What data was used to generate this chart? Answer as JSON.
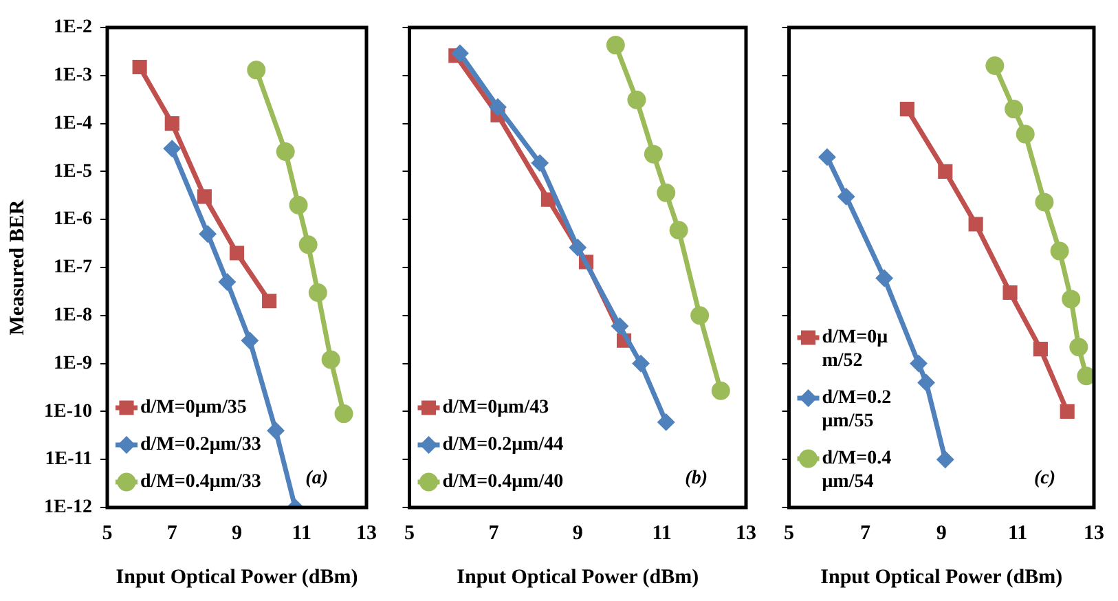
{
  "chart_data": [
    {
      "type": "line",
      "xlabel": "Input Optical Power (dBm)",
      "ylabel": "Measured BER",
      "log": "y",
      "grid": false,
      "legend": "bottom left",
      "line_style": "solid",
      "xlim": [
        5,
        13
      ],
      "xticks": [
        5,
        7,
        9,
        11,
        13
      ],
      "ylim": [
        1e-12,
        0.01
      ],
      "yticks": [
        {
          "value": 0.01,
          "label": "1E-2"
        },
        {
          "value": 0.001,
          "label": "1E-3"
        },
        {
          "value": 0.0001,
          "label": "1E-4"
        },
        {
          "value": 1e-05,
          "label": "1E-5"
        },
        {
          "value": 1e-06,
          "label": "1E-6"
        },
        {
          "value": 1e-07,
          "label": "1E-7"
        },
        {
          "value": 1e-08,
          "label": "1E-8"
        },
        {
          "value": 1e-09,
          "label": "1E-9"
        },
        {
          "value": 1e-10,
          "label": "1E-10"
        },
        {
          "value": 1e-11,
          "label": "1E-11"
        },
        {
          "value": 1e-12,
          "label": "1E-12"
        }
      ],
      "annotations": [
        "(a)"
      ],
      "series": [
        {
          "name": "d/M=0μm/35",
          "color": "#c0504d",
          "marker": "square",
          "x": [
            6,
            7,
            8,
            9,
            10
          ],
          "values": [
            0.0015,
            0.0001,
            3e-06,
            2e-07,
            2e-08
          ]
        },
        {
          "name": "d/M=0.2μm/33",
          "color": "#4f81bd",
          "marker": "diamond",
          "x": [
            7,
            8.1,
            8.7,
            9.4,
            10.2,
            10.8
          ],
          "values": [
            3e-05,
            5e-07,
            5e-08,
            3e-09,
            4e-11,
            1e-12
          ]
        },
        {
          "name": "d/M=0.4μm/33",
          "color": "#9bbb59",
          "marker": "circle",
          "x": [
            9.6,
            10.5,
            10.9,
            11.2,
            11.5,
            11.9,
            12.3
          ],
          "values": [
            0.0013,
            2.6e-05,
            2e-06,
            3e-07,
            3e-08,
            1.2e-09,
            9e-11
          ]
        }
      ]
    },
    {
      "type": "line",
      "xlabel": "Input Optical Power (dBm)",
      "log": "y",
      "grid": false,
      "legend": "bottom left",
      "line_style": "solid",
      "tick_labels": "x",
      "xlim": [
        5,
        13
      ],
      "xticks": [
        5,
        7,
        9,
        11,
        13
      ],
      "ylim": [
        1e-12,
        0.01
      ],
      "yticks": [
        {
          "value": 0.01,
          "label": null
        },
        {
          "value": 0.001,
          "label": null
        },
        {
          "value": 0.0001,
          "label": null
        },
        {
          "value": 1e-05,
          "label": null
        },
        {
          "value": 1e-06,
          "label": null
        },
        {
          "value": 1e-07,
          "label": null
        },
        {
          "value": 1e-08,
          "label": null
        },
        {
          "value": 1e-09,
          "label": null
        },
        {
          "value": 1e-10,
          "label": null
        },
        {
          "value": 1e-11,
          "label": null
        },
        {
          "value": 1e-12,
          "label": null
        }
      ],
      "annotations": [
        "(b)"
      ],
      "series": [
        {
          "name": "d/M=0μm/43",
          "color": "#c0504d",
          "marker": "square",
          "x": [
            6.1,
            7.1,
            8.3,
            9.2,
            10.1
          ],
          "values": [
            0.0026,
            0.00015,
            2.6e-06,
            1.3e-07,
            3e-09
          ]
        },
        {
          "name": "d/M=0.2μm/44",
          "color": "#4f81bd",
          "marker": "diamond",
          "x": [
            6.2,
            7.1,
            8.1,
            9,
            10,
            10.5,
            11.1
          ],
          "values": [
            0.0029,
            0.00022,
            1.5e-05,
            2.6e-07,
            6e-09,
            1e-09,
            6e-11
          ]
        },
        {
          "name": "d/M=0.4μm/40",
          "color": "#9bbb59",
          "marker": "circle",
          "x": [
            9.9,
            10.4,
            10.8,
            11.1,
            11.4,
            11.9,
            12.4
          ],
          "values": [
            0.0043,
            0.00031,
            2.3e-05,
            3.6e-06,
            6e-07,
            1e-08,
            2.7e-10
          ]
        }
      ]
    },
    {
      "type": "line",
      "xlabel": "Input Optical Power (dBm)",
      "log": "y",
      "grid": false,
      "legend": "bottom left",
      "line_style": "solid",
      "tick_labels": "x",
      "xlim": [
        5,
        13
      ],
      "xticks": [
        5,
        7,
        9,
        11,
        13
      ],
      "ylim": [
        1e-12,
        0.01
      ],
      "yticks": [
        {
          "value": 0.01,
          "label": null
        },
        {
          "value": 0.001,
          "label": null
        },
        {
          "value": 0.0001,
          "label": null
        },
        {
          "value": 1e-05,
          "label": null
        },
        {
          "value": 1e-06,
          "label": null
        },
        {
          "value": 1e-07,
          "label": null
        },
        {
          "value": 1e-08,
          "label": null
        },
        {
          "value": 1e-09,
          "label": null
        },
        {
          "value": 1e-10,
          "label": null
        },
        {
          "value": 1e-11,
          "label": null
        },
        {
          "value": 1e-12,
          "label": null
        }
      ],
      "annotations": [
        "(c)"
      ],
      "series": [
        {
          "name": "d/M=0μm/52",
          "color": "#c0504d",
          "marker": "square",
          "x": [
            8.1,
            9.1,
            9.9,
            10.8,
            11.6,
            12.3
          ],
          "values": [
            0.0002,
            1e-05,
            8e-07,
            3e-08,
            2e-09,
            1e-10
          ]
        },
        {
          "name": "d/M=0.2μm/55",
          "color": "#4f81bd",
          "marker": "diamond",
          "x": [
            6,
            6.5,
            7.5,
            8.4,
            8.6,
            9.1
          ],
          "values": [
            2e-05,
            3e-06,
            6e-08,
            1e-09,
            4e-10,
            1e-11
          ]
        },
        {
          "name": "d/M=0.4μm/54",
          "color": "#9bbb59",
          "marker": "circle",
          "x": [
            10.4,
            10.9,
            11.2,
            11.7,
            12.1,
            12.4,
            12.6,
            12.8
          ],
          "values": [
            0.0016,
            0.0002,
            6e-05,
            2.3e-06,
            2.2e-07,
            2.2e-08,
            2.2e-09,
            5.5e-10
          ]
        }
      ]
    }
  ]
}
